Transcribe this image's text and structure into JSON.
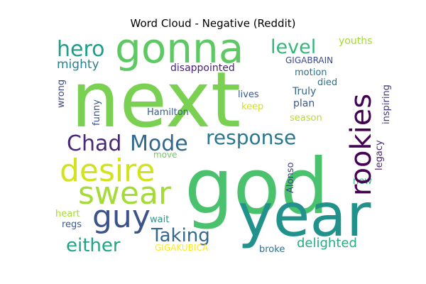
{
  "title": "Word Cloud - Negative (Reddit)",
  "words": [
    {
      "text": "next",
      "color": "#7ad151"
    },
    {
      "text": "god",
      "color": "#4ac16d"
    },
    {
      "text": "year",
      "color": "#21918c"
    },
    {
      "text": "gonna",
      "color": "#5ec962"
    },
    {
      "text": "rookies",
      "color": "#440154"
    },
    {
      "text": "desire",
      "color": "#d2e21b"
    },
    {
      "text": "swear",
      "color": "#a5db36"
    },
    {
      "text": "guy",
      "color": "#3b528b"
    },
    {
      "text": "response",
      "color": "#2a788e"
    },
    {
      "text": "Mode",
      "color": "#31688e"
    },
    {
      "text": "Chad",
      "color": "#482878"
    },
    {
      "text": "hero",
      "color": "#1f9e89"
    },
    {
      "text": "level",
      "color": "#35b779"
    },
    {
      "text": "Taking",
      "color": "#31688e"
    },
    {
      "text": "either",
      "color": "#20a486"
    },
    {
      "text": "mighty",
      "color": "#26828e"
    },
    {
      "text": "disappointed",
      "color": "#482173"
    },
    {
      "text": "youths",
      "color": "#a0da39"
    },
    {
      "text": "GIGABRAIN",
      "color": "#3e4989"
    },
    {
      "text": "motion",
      "color": "#2c728e"
    },
    {
      "text": "died",
      "color": "#2c728e"
    },
    {
      "text": "Truly",
      "color": "#31688e"
    },
    {
      "text": "lives",
      "color": "#39568c"
    },
    {
      "text": "keep",
      "color": "#d8e219"
    },
    {
      "text": "plan",
      "color": "#38588c"
    },
    {
      "text": "season",
      "color": "#b8de29"
    },
    {
      "text": "inspiring",
      "color": "#443983"
    },
    {
      "text": "legacy",
      "color": "#482576"
    },
    {
      "text": "wrong",
      "color": "#3e4989"
    },
    {
      "text": "funny",
      "color": "#3b528b"
    },
    {
      "text": "Hamilton",
      "color": "#355f8d"
    },
    {
      "text": "move",
      "color": "#6ece58"
    },
    {
      "text": "Alonso",
      "color": "#414487"
    },
    {
      "text": "new",
      "color": "#2db27d"
    },
    {
      "text": "heart",
      "color": "#a5db36"
    },
    {
      "text": "regs",
      "color": "#365c8d"
    },
    {
      "text": "wait",
      "color": "#1e9c89"
    },
    {
      "text": "GIGAKUBICA",
      "color": "#fde725"
    },
    {
      "text": "broke",
      "color": "#2d708e"
    },
    {
      "text": "delighted",
      "color": "#25ac82"
    }
  ]
}
